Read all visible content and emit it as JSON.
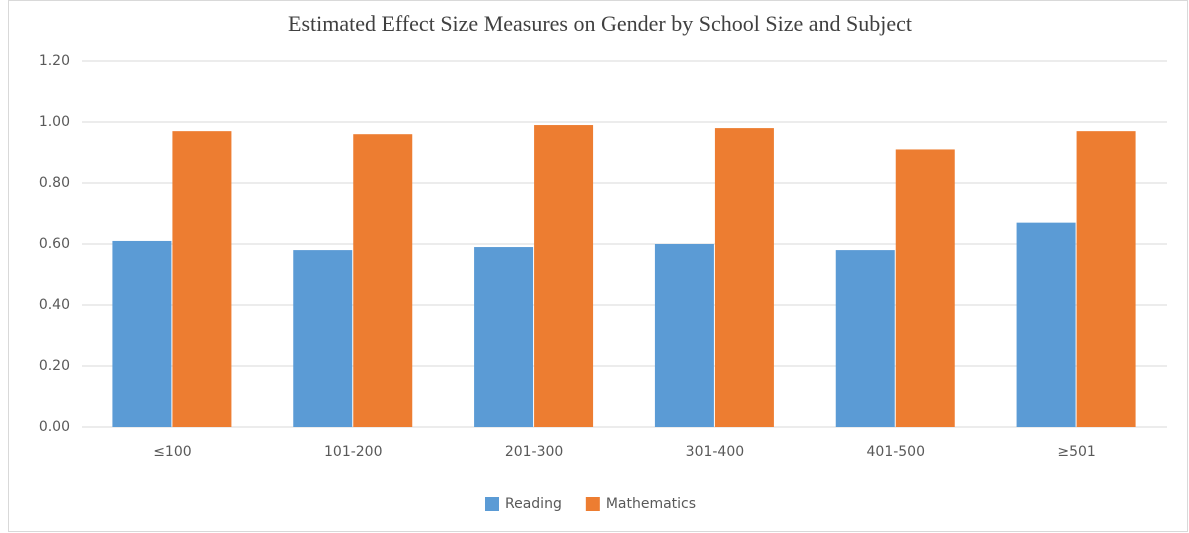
{
  "chart_data": {
    "type": "bar",
    "title": "Estimated Effect Size Measures on Gender by School Size and Subject",
    "categories": [
      "≤100",
      "101-200",
      "201-300",
      "301-400",
      "401-500",
      "≥501"
    ],
    "series": [
      {
        "name": "Reading",
        "color": "#5b9bd5",
        "values": [
          0.61,
          0.58,
          0.59,
          0.6,
          0.58,
          0.67
        ]
      },
      {
        "name": "Mathematics",
        "color": "#ed7d31",
        "values": [
          0.97,
          0.96,
          0.99,
          0.98,
          0.91,
          0.97
        ]
      }
    ],
    "ylim": [
      0,
      1.2
    ],
    "yticks": [
      {
        "value": 0,
        "label": "0.00"
      },
      {
        "value": 0.2,
        "label": "0.20"
      },
      {
        "value": 0.4,
        "label": "0.40"
      },
      {
        "value": 0.6,
        "label": "0.60"
      },
      {
        "value": 0.8,
        "label": "0.80"
      },
      {
        "value": 1.0,
        "label": "1.00"
      },
      {
        "value": 1.2,
        "label": "1.20"
      }
    ],
    "grid": true,
    "legend": "bottom"
  }
}
